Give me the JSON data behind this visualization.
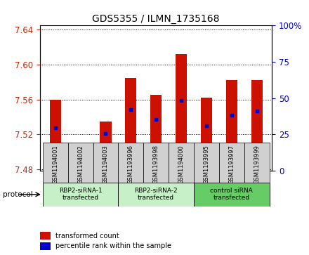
{
  "title": "GDS5355 / ILMN_1735168",
  "samples": [
    "GSM1194001",
    "GSM1194002",
    "GSM1194003",
    "GSM1193996",
    "GSM1193998",
    "GSM1194000",
    "GSM1193995",
    "GSM1193997",
    "GSM1193999"
  ],
  "bar_tops": [
    7.56,
    7.481,
    7.535,
    7.585,
    7.565,
    7.612,
    7.562,
    7.582,
    7.582
  ],
  "bar_bottom": 7.478,
  "blue_marker_values": [
    7.527,
    7.483,
    7.521,
    7.548,
    7.537,
    7.559,
    7.53,
    7.542,
    7.547
  ],
  "groups": [
    {
      "label": "RBP2-siRNA-1\ntransfected",
      "start": 0,
      "end": 3,
      "color": "#c8f0c8"
    },
    {
      "label": "RBP2-siRNA-2\ntransfected",
      "start": 3,
      "end": 6,
      "color": "#c8f0c8"
    },
    {
      "label": "control siRNA\ntransfected",
      "start": 6,
      "end": 9,
      "color": "#66cc66"
    }
  ],
  "ylim_left": [
    7.478,
    7.645
  ],
  "yticks_left": [
    7.48,
    7.52,
    7.56,
    7.6,
    7.64
  ],
  "ylim_right": [
    0,
    100
  ],
  "yticks_right": [
    0,
    25,
    50,
    75,
    100
  ],
  "bar_color": "#cc1100",
  "blue_color": "#0000cc",
  "bar_width": 0.45,
  "left_tick_color": "#cc2200",
  "right_tick_color": "#0000cc",
  "grid_color": "#000000",
  "sample_bg_color": "#d0d0d0",
  "group_border_color": "#555555",
  "protocol_label": "protocol",
  "legend_items": [
    {
      "label": "transformed count",
      "color": "#cc1100"
    },
    {
      "label": "percentile rank within the sample",
      "color": "#0000cc"
    }
  ]
}
